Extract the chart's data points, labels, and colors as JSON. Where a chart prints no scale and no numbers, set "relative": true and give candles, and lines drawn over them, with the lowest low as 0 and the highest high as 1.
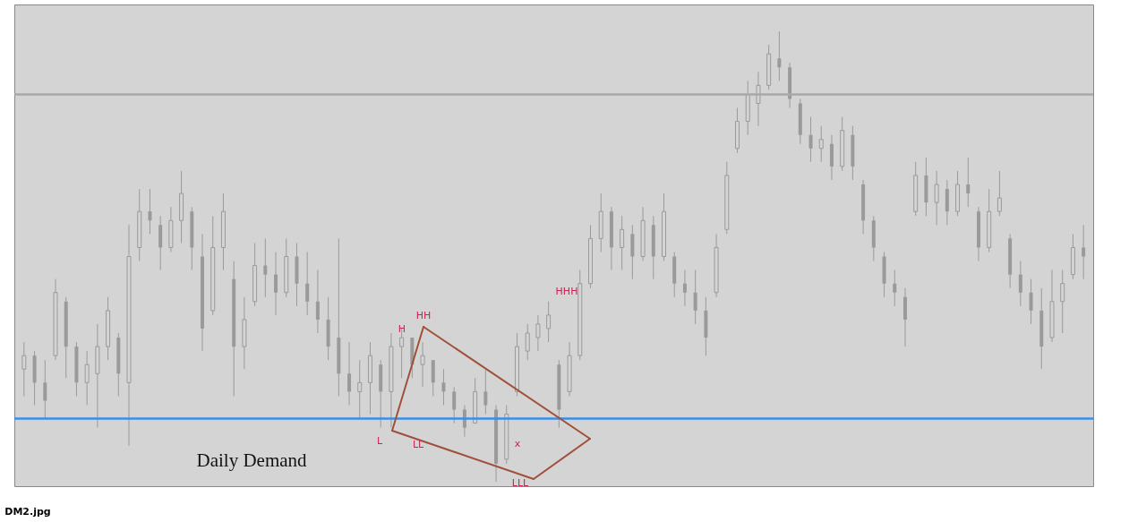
{
  "chart_data": {
    "type": "candlestick",
    "relative": true,
    "color": "#9a9a9a",
    "categories": [
      null,
      null,
      null,
      null,
      null,
      null,
      null,
      null,
      null,
      null,
      null,
      null,
      null,
      null,
      null,
      null,
      null,
      null,
      null,
      null,
      null,
      null,
      null,
      null,
      null,
      null,
      null,
      null,
      null,
      null,
      null,
      null,
      null,
      null,
      null,
      null,
      null,
      null,
      null,
      null,
      null,
      null,
      null,
      null,
      null,
      null,
      null,
      null,
      null,
      null,
      null,
      null,
      null,
      null,
      null,
      null,
      null,
      null,
      null,
      null,
      null,
      null,
      null,
      null,
      null,
      null,
      null,
      null,
      null,
      null,
      null,
      null,
      null,
      null,
      null,
      null,
      null,
      null,
      null,
      null,
      null,
      null,
      null,
      null,
      null,
      null,
      null,
      null,
      null,
      null,
      null,
      null,
      null,
      null,
      null,
      null,
      null,
      null,
      null,
      null,
      null,
      null
    ],
    "ohlc": [
      [
        0.25,
        0.31,
        0.19,
        0.28
      ],
      [
        0.28,
        0.29,
        0.17,
        0.22
      ],
      [
        0.22,
        0.27,
        0.14,
        0.18
      ],
      [
        0.28,
        0.45,
        0.27,
        0.42
      ],
      [
        0.4,
        0.41,
        0.23,
        0.3
      ],
      [
        0.3,
        0.31,
        0.19,
        0.22
      ],
      [
        0.22,
        0.29,
        0.17,
        0.26
      ],
      [
        0.24,
        0.35,
        0.12,
        0.3
      ],
      [
        0.3,
        0.41,
        0.27,
        0.38
      ],
      [
        0.32,
        0.33,
        0.19,
        0.24
      ],
      [
        0.22,
        0.57,
        0.08,
        0.5
      ],
      [
        0.52,
        0.65,
        0.49,
        0.6
      ],
      [
        0.6,
        0.65,
        0.55,
        0.58
      ],
      [
        0.57,
        0.59,
        0.47,
        0.52
      ],
      [
        0.52,
        0.61,
        0.51,
        0.58
      ],
      [
        0.58,
        0.69,
        0.53,
        0.64
      ],
      [
        0.6,
        0.61,
        0.47,
        0.52
      ],
      [
        0.5,
        0.55,
        0.29,
        0.34
      ],
      [
        0.38,
        0.59,
        0.37,
        0.52
      ],
      [
        0.52,
        0.64,
        0.47,
        0.6
      ],
      [
        0.45,
        0.49,
        0.19,
        0.3
      ],
      [
        0.3,
        0.41,
        0.25,
        0.36
      ],
      [
        0.4,
        0.53,
        0.39,
        0.48
      ],
      [
        0.48,
        0.54,
        0.41,
        0.46
      ],
      [
        0.46,
        0.51,
        0.37,
        0.42
      ],
      [
        0.42,
        0.54,
        0.41,
        0.5
      ],
      [
        0.5,
        0.53,
        0.39,
        0.44
      ],
      [
        0.44,
        0.51,
        0.37,
        0.4
      ],
      [
        0.4,
        0.47,
        0.33,
        0.36
      ],
      [
        0.36,
        0.41,
        0.27,
        0.3
      ],
      [
        0.32,
        0.54,
        0.19,
        0.24
      ],
      [
        0.24,
        0.31,
        0.17,
        0.2
      ],
      [
        0.2,
        0.27,
        0.14,
        0.22
      ],
      [
        0.22,
        0.31,
        0.15,
        0.28
      ],
      [
        0.26,
        0.27,
        0.12,
        0.2
      ],
      [
        0.2,
        0.33,
        0.12,
        0.3
      ],
      [
        0.3,
        0.34,
        0.23,
        0.32
      ],
      [
        0.32,
        0.32,
        0.23,
        0.26
      ],
      [
        0.26,
        0.31,
        0.21,
        0.28
      ],
      [
        0.27,
        0.27,
        0.19,
        0.22
      ],
      [
        0.22,
        0.25,
        0.17,
        0.2
      ],
      [
        0.2,
        0.21,
        0.13,
        0.16
      ],
      [
        0.16,
        0.17,
        0.1,
        0.12
      ],
      [
        0.13,
        0.23,
        0.13,
        0.2
      ],
      [
        0.2,
        0.25,
        0.15,
        0.17
      ],
      [
        0.16,
        0.17,
        0.0,
        0.04
      ],
      [
        0.05,
        0.17,
        0.04,
        0.15
      ],
      [
        0.2,
        0.33,
        0.19,
        0.3
      ],
      [
        0.29,
        0.35,
        0.27,
        0.33
      ],
      [
        0.32,
        0.37,
        0.29,
        0.35
      ],
      [
        0.34,
        0.4,
        0.31,
        0.37
      ],
      [
        0.26,
        0.27,
        0.12,
        0.16
      ],
      [
        0.2,
        0.31,
        0.19,
        0.28
      ],
      [
        0.28,
        0.47,
        0.27,
        0.44
      ],
      [
        0.44,
        0.57,
        0.43,
        0.54
      ],
      [
        0.54,
        0.64,
        0.51,
        0.6
      ],
      [
        0.6,
        0.61,
        0.47,
        0.52
      ],
      [
        0.52,
        0.59,
        0.47,
        0.56
      ],
      [
        0.55,
        0.57,
        0.45,
        0.5
      ],
      [
        0.5,
        0.61,
        0.49,
        0.58
      ],
      [
        0.57,
        0.59,
        0.45,
        0.5
      ],
      [
        0.5,
        0.64,
        0.49,
        0.6
      ],
      [
        0.5,
        0.51,
        0.41,
        0.44
      ],
      [
        0.44,
        0.47,
        0.39,
        0.42
      ],
      [
        0.42,
        0.47,
        0.35,
        0.38
      ],
      [
        0.38,
        0.41,
        0.28,
        0.32
      ],
      [
        0.42,
        0.55,
        0.41,
        0.52
      ],
      [
        0.56,
        0.71,
        0.55,
        0.68
      ],
      [
        0.74,
        0.83,
        0.73,
        0.8
      ],
      [
        0.8,
        0.89,
        0.77,
        0.86
      ],
      [
        0.84,
        0.91,
        0.79,
        0.88
      ],
      [
        0.88,
        0.97,
        0.87,
        0.95
      ],
      [
        0.94,
        1.0,
        0.89,
        0.92
      ],
      [
        0.92,
        0.93,
        0.83,
        0.85
      ],
      [
        0.84,
        0.85,
        0.75,
        0.77
      ],
      [
        0.77,
        0.81,
        0.71,
        0.74
      ],
      [
        0.74,
        0.79,
        0.71,
        0.76
      ],
      [
        0.75,
        0.77,
        0.67,
        0.7
      ],
      [
        0.7,
        0.81,
        0.69,
        0.78
      ],
      [
        0.77,
        0.79,
        0.67,
        0.7
      ],
      [
        0.66,
        0.67,
        0.55,
        0.58
      ],
      [
        0.58,
        0.59,
        0.49,
        0.52
      ],
      [
        0.5,
        0.51,
        0.41,
        0.44
      ],
      [
        0.44,
        0.47,
        0.39,
        0.42
      ],
      [
        0.41,
        0.43,
        0.3,
        0.36
      ],
      [
        0.6,
        0.71,
        0.59,
        0.68
      ],
      [
        0.68,
        0.72,
        0.59,
        0.62
      ],
      [
        0.62,
        0.69,
        0.57,
        0.66
      ],
      [
        0.65,
        0.67,
        0.57,
        0.6
      ],
      [
        0.6,
        0.69,
        0.59,
        0.66
      ],
      [
        0.66,
        0.72,
        0.61,
        0.64
      ],
      [
        0.6,
        0.61,
        0.49,
        0.52
      ],
      [
        0.52,
        0.65,
        0.51,
        0.6
      ],
      [
        0.6,
        0.69,
        0.59,
        0.63
      ],
      [
        0.54,
        0.55,
        0.43,
        0.46
      ],
      [
        0.46,
        0.49,
        0.39,
        0.42
      ],
      [
        0.42,
        0.45,
        0.35,
        0.38
      ],
      [
        0.38,
        0.43,
        0.25,
        0.3
      ],
      [
        0.32,
        0.47,
        0.31,
        0.4
      ],
      [
        0.4,
        0.47,
        0.33,
        0.44
      ],
      [
        0.46,
        0.55,
        0.45,
        0.52
      ],
      [
        0.52,
        0.57,
        0.45,
        0.5
      ]
    ],
    "ref_lines": [
      {
        "axis": "y",
        "value": 0.14,
        "color": "#3a8ee6"
      },
      {
        "axis": "y",
        "value": 0.86,
        "color": "#a8a8a8"
      }
    ],
    "annotations": [
      "Daily Demand",
      "H",
      "HH",
      "L",
      "LL",
      "LLL",
      "HHH",
      "x",
      "DM2.jpg"
    ]
  }
}
